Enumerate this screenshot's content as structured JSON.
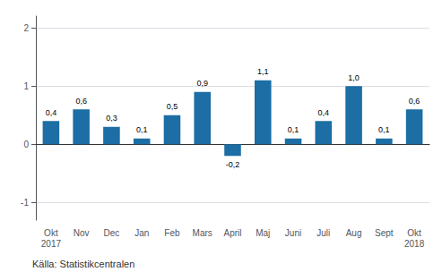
{
  "chart_data": {
    "type": "bar",
    "categories": [
      "Okt\n2017",
      "Nov",
      "Dec",
      "Jan",
      "Feb",
      "Mars",
      "April",
      "Maj",
      "Juni",
      "Juli",
      "Aug",
      "Sept",
      "Okt\n2018"
    ],
    "values": [
      0.4,
      0.6,
      0.3,
      0.1,
      0.5,
      0.9,
      -0.2,
      1.1,
      0.1,
      0.4,
      1.0,
      0.1,
      0.6
    ],
    "value_labels": [
      "0,4",
      "0,6",
      "0,3",
      "0,1",
      "0,5",
      "0,9",
      "-0,2",
      "1,1",
      "0,1",
      "0,4",
      "1,0",
      "0,1",
      "0,6"
    ],
    "data_labels": true,
    "color": "#1c6ea4",
    "ylim": [
      -1.3,
      2.2
    ],
    "yticks": [
      -1,
      0,
      1,
      2
    ],
    "grid": true,
    "annotations": [
      "Källa: Statistikcentralen"
    ]
  }
}
